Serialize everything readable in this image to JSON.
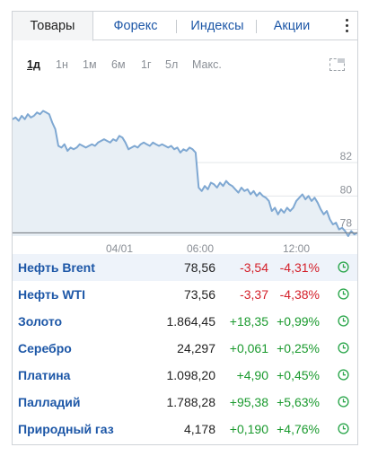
{
  "tabs": [
    {
      "label": "Товары",
      "active": true
    },
    {
      "label": "Форекс",
      "active": false
    },
    {
      "label": "Индексы",
      "active": false
    },
    {
      "label": "Акции",
      "active": false
    }
  ],
  "periods": [
    {
      "label": "1д",
      "active": true
    },
    {
      "label": "1н",
      "active": false
    },
    {
      "label": "1м",
      "active": false
    },
    {
      "label": "6м",
      "active": false
    },
    {
      "label": "1г",
      "active": false
    },
    {
      "label": "5л",
      "active": false
    },
    {
      "label": "Макс.",
      "active": false
    }
  ],
  "chart_data": {
    "type": "area",
    "y_ticks": [
      "82",
      "80",
      "78"
    ],
    "x_ticks": [
      "04/01",
      "06:00",
      "12:00"
    ],
    "ylim": [
      77.6,
      86.2
    ],
    "values": [
      84.6,
      84.7,
      84.5,
      84.8,
      84.6,
      84.9,
      84.7,
      84.8,
      85.0,
      84.9,
      85.1,
      85.0,
      84.9,
      84.4,
      84.0,
      83.0,
      82.9,
      83.1,
      82.7,
      82.9,
      82.8,
      82.9,
      83.1,
      83.0,
      82.9,
      83.0,
      83.1,
      83.0,
      83.2,
      83.3,
      83.4,
      83.3,
      83.2,
      83.4,
      83.3,
      83.6,
      83.5,
      83.2,
      82.8,
      82.9,
      83.0,
      82.9,
      83.1,
      83.2,
      83.1,
      83.0,
      83.2,
      83.1,
      83.0,
      83.1,
      83.0,
      82.9,
      83.0,
      82.8,
      82.9,
      82.6,
      82.8,
      82.7,
      82.9,
      82.8,
      82.6,
      80.5,
      80.3,
      80.6,
      80.4,
      80.8,
      80.7,
      80.5,
      80.8,
      80.6,
      80.9,
      80.7,
      80.6,
      80.4,
      80.2,
      80.5,
      80.3,
      80.4,
      80.1,
      80.3,
      80.0,
      80.2,
      80.0,
      79.9,
      79.7,
      79.1,
      79.3,
      78.9,
      79.2,
      79.0,
      79.3,
      79.1,
      79.3,
      79.7,
      79.9,
      80.1,
      79.8,
      80.0,
      79.7,
      79.9,
      79.6,
      79.2,
      78.9,
      79.1,
      78.6,
      78.3,
      78.4,
      78.0,
      78.1,
      77.9,
      77.6,
      77.9,
      77.7,
      77.8
    ],
    "reference_line": 77.9
  },
  "rows": [
    {
      "name": "Нефть Brent",
      "price": "78,56",
      "change": "-3,54",
      "pct": "-4,31%",
      "dir": "neg",
      "highlight": true
    },
    {
      "name": "Нефть WTI",
      "price": "73,56",
      "change": "-3,37",
      "pct": "-4,38%",
      "dir": "neg",
      "highlight": false
    },
    {
      "name": "Золото",
      "price": "1.864,45",
      "change": "+18,35",
      "pct": "+0,99%",
      "dir": "pos",
      "highlight": false
    },
    {
      "name": "Серебро",
      "price": "24,297",
      "change": "+0,061",
      "pct": "+0,25%",
      "dir": "pos",
      "highlight": false
    },
    {
      "name": "Платина",
      "price": "1.098,20",
      "change": "+4,90",
      "pct": "+0,45%",
      "dir": "pos",
      "highlight": false
    },
    {
      "name": "Палладий",
      "price": "1.788,28",
      "change": "+95,38",
      "pct": "+5,63%",
      "dir": "pos",
      "highlight": false
    },
    {
      "name": "Природный газ",
      "price": "4,178",
      "change": "+0,190",
      "pct": "+4,76%",
      "dir": "pos",
      "highlight": false
    }
  ],
  "colors": {
    "line": "#7fa8d2",
    "area": "#e8eff5",
    "link": "#1d57a7",
    "negative": "#d4202a",
    "positive": "#1a9a2e"
  },
  "icons": {
    "menu": "kebab-menu-icon",
    "chart_toggle": "chart-toggle-icon",
    "status": "clock-icon"
  }
}
